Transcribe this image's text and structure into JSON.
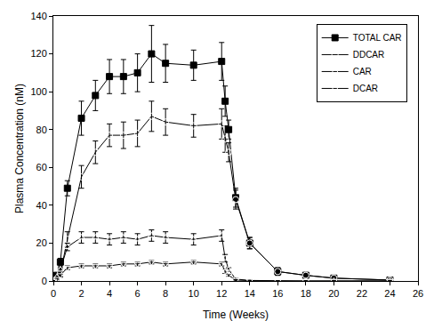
{
  "chart_data": {
    "type": "line",
    "x_label": "Time (Weeks)",
    "y_label": "Plasma Concentration (nM)",
    "x": [
      0,
      0.25,
      0.5,
      1,
      2,
      3,
      4,
      5,
      6,
      7,
      8,
      10,
      12,
      12.25,
      12.5,
      13,
      14,
      16,
      18,
      20,
      24
    ],
    "xlim": [
      0,
      26
    ],
    "xticks": [
      0,
      2,
      4,
      6,
      8,
      10,
      12,
      14,
      16,
      18,
      20,
      22,
      24,
      26
    ],
    "ylim": [
      0,
      140
    ],
    "yticks": [
      0,
      20,
      40,
      60,
      80,
      100,
      120,
      140
    ],
    "grid": false,
    "legend": "top-right",
    "series": [
      {
        "name": "TOTAL CAR",
        "color": "#000000",
        "marker": "square",
        "values": [
          0,
          3,
          10,
          49,
          86,
          98,
          108,
          108,
          110,
          120,
          115,
          114,
          116,
          95,
          80,
          44,
          20,
          5,
          3,
          1.5,
          0.5
        ],
        "errors": [
          0,
          1,
          2,
          4,
          9,
          8,
          9,
          9,
          10,
          15,
          10,
          8,
          10,
          8,
          5,
          5,
          3,
          2,
          1,
          0.5,
          0.3
        ]
      },
      {
        "name": "DDCAR",
        "color": "#000000",
        "marker": "circle-open",
        "values": [
          0,
          1,
          4,
          22,
          55,
          68,
          77,
          77,
          78,
          87,
          84,
          82,
          83,
          75,
          68,
          43,
          20,
          5,
          3,
          1.5,
          0.5
        ],
        "errors": [
          0,
          1,
          2,
          4,
          6,
          6,
          6,
          7,
          7,
          8,
          7,
          6,
          8,
          7,
          5,
          5,
          3,
          2,
          1,
          0.5,
          0.3
        ]
      },
      {
        "name": "CAR",
        "color": "#000000",
        "marker": "triangle-up-open",
        "values": [
          0,
          2,
          6,
          18,
          23,
          23,
          22,
          23,
          22,
          24,
          23,
          22,
          24,
          12,
          6,
          1,
          0.3,
          0,
          0,
          0,
          0
        ],
        "errors": [
          0,
          0.5,
          1,
          2,
          3,
          3,
          3,
          3,
          3,
          3,
          3,
          3,
          3,
          2,
          1,
          0.5,
          0.2,
          0,
          0,
          0,
          0
        ]
      },
      {
        "name": "DCAR",
        "color": "#000000",
        "marker": "triangle-down-open",
        "values": [
          0,
          1,
          3,
          7,
          8,
          8,
          8,
          9,
          9,
          10,
          9,
          10,
          9,
          5,
          3,
          0.5,
          0.2,
          0,
          0,
          0,
          0
        ],
        "errors": [
          0,
          0.3,
          0.5,
          1,
          1,
          1,
          1,
          1,
          1,
          1,
          1,
          1,
          1,
          1,
          0.5,
          0.2,
          0.1,
          0,
          0,
          0,
          0
        ]
      }
    ]
  }
}
